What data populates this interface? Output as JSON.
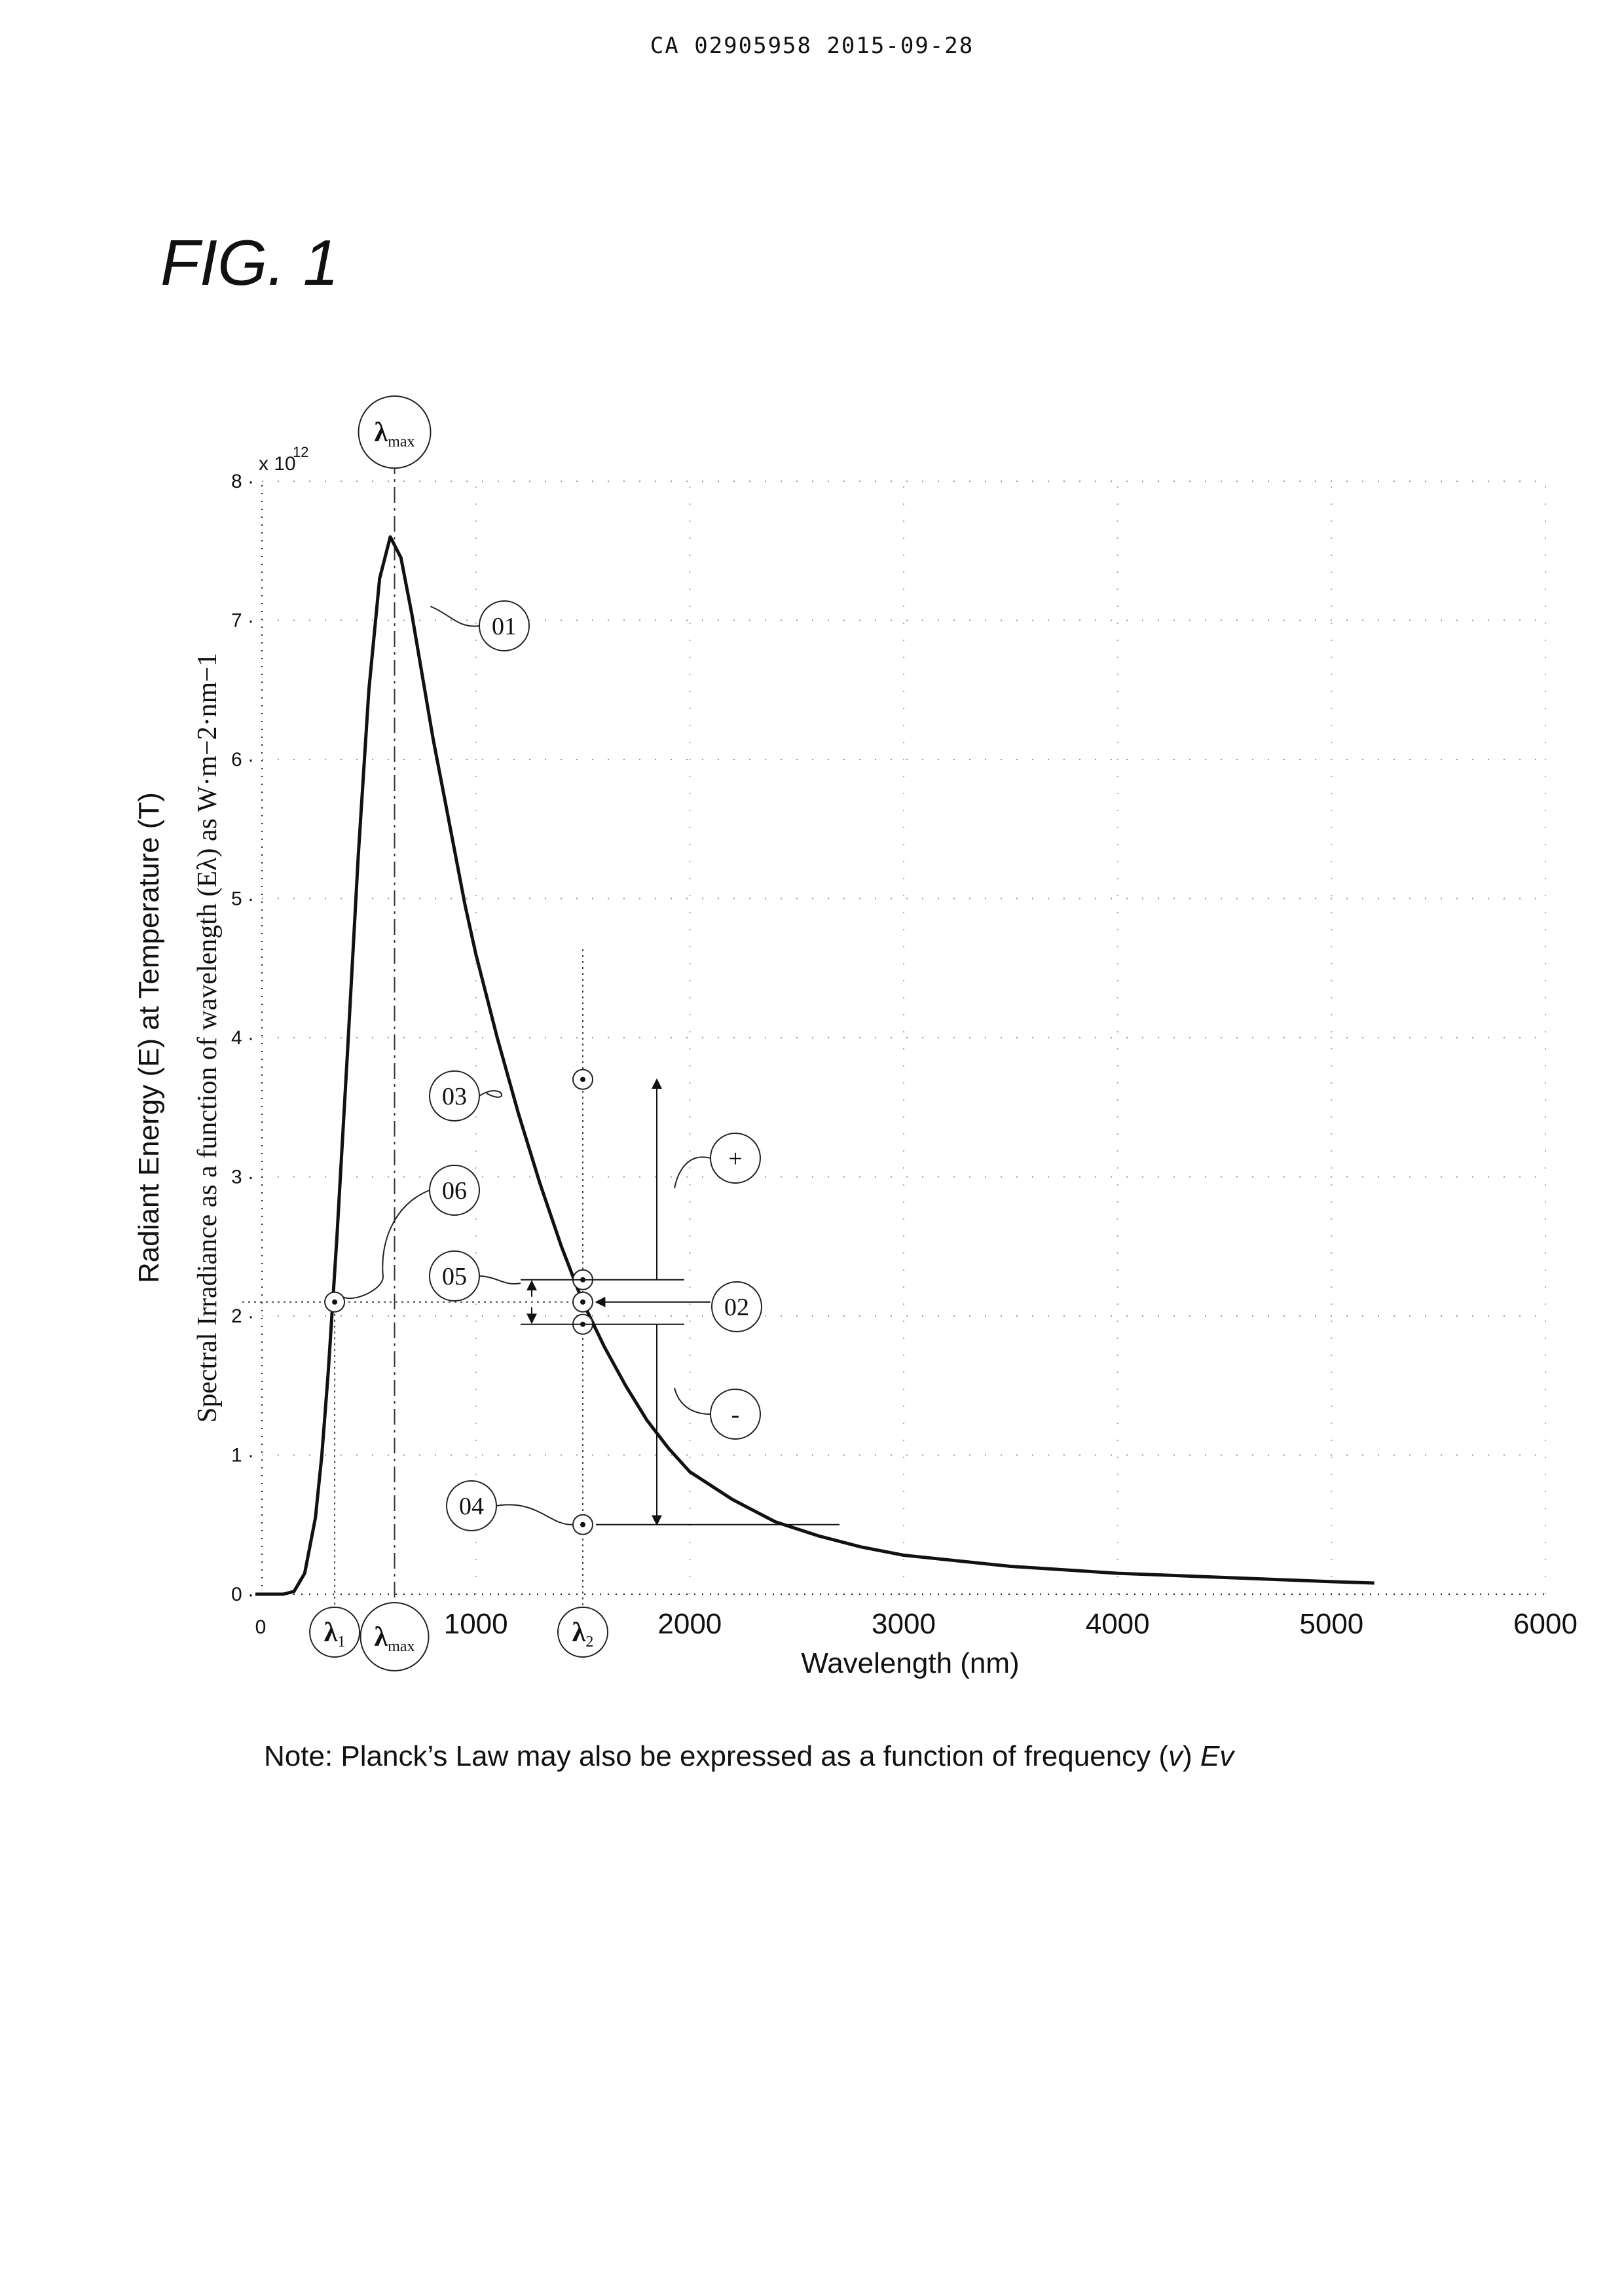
{
  "header": {
    "text": "CA 02905958 2015-09-28"
  },
  "figure": {
    "label": "FIG. 1"
  },
  "note": {
    "prefix": "Note:  Planck’s Law may also be expressed as a function of frequency (",
    "nu": "v",
    "middle": ") ",
    "ev": "Ev"
  },
  "chart_data": {
    "type": "line",
    "xlabel": "Wavelength (nm)",
    "ylabel_primary": "Radiant Energy (E) at Temperature (T)",
    "ylabel_secondary": "Spectral Irradiance  as a function of wavelength (Eλ) as W·m−2·nm−1",
    "y_multiplier": "x 10",
    "y_exponent": "12",
    "xlim": [
      0,
      6000
    ],
    "ylim": [
      0,
      8
    ],
    "x_ticks": [
      0,
      1000,
      2000,
      3000,
      4000,
      5000,
      6000
    ],
    "y_ticks": [
      0,
      1,
      2,
      3,
      4,
      5,
      6,
      7,
      8
    ],
    "grid": "dotted",
    "series": [
      {
        "x": [
          0,
          100,
          150,
          200,
          250,
          280,
          310,
          350,
          400,
          450,
          500,
          550,
          600,
          650,
          700,
          750,
          800,
          850,
          900,
          950,
          1000,
          1100,
          1200,
          1300,
          1400,
          1500,
          1600,
          1700,
          1800,
          1900,
          2000,
          2200,
          2400,
          2600,
          2800,
          3000,
          3500,
          4000,
          4500,
          5000,
          5200
        ],
        "y": [
          0.0,
          0.0,
          0.02,
          0.15,
          0.55,
          1.0,
          1.6,
          2.55,
          3.9,
          5.3,
          6.5,
          7.3,
          7.6,
          7.45,
          7.05,
          6.6,
          6.15,
          5.75,
          5.35,
          4.95,
          4.6,
          4.0,
          3.45,
          2.95,
          2.5,
          2.1,
          1.78,
          1.5,
          1.25,
          1.05,
          0.88,
          0.68,
          0.52,
          0.42,
          0.34,
          0.28,
          0.2,
          0.15,
          0.12,
          0.09,
          0.08
        ]
      }
    ],
    "markers": [
      {
        "ref": "01",
        "x": 600,
        "y": 7.6
      },
      {
        "ref": "02",
        "x": 1500,
        "y": 2.1
      },
      {
        "ref": "03",
        "x": 1500,
        "y": 3.7
      },
      {
        "ref": "04",
        "x": 1500,
        "y": 0.5
      },
      {
        "ref": "05",
        "x": 1500,
        "y": 2.25
      },
      {
        "ref": "06",
        "x": 340,
        "y": 2.1
      }
    ],
    "callouts": [
      "01",
      "02",
      "03",
      "04",
      "05",
      "06",
      "+",
      "-"
    ],
    "wavelength_markers": [
      {
        "symbol": "λ",
        "sub": "1",
        "x": 340
      },
      {
        "symbol": "λ",
        "sub": "max",
        "x": 620
      },
      {
        "symbol": "λ",
        "sub": "2",
        "x": 1500
      }
    ]
  }
}
